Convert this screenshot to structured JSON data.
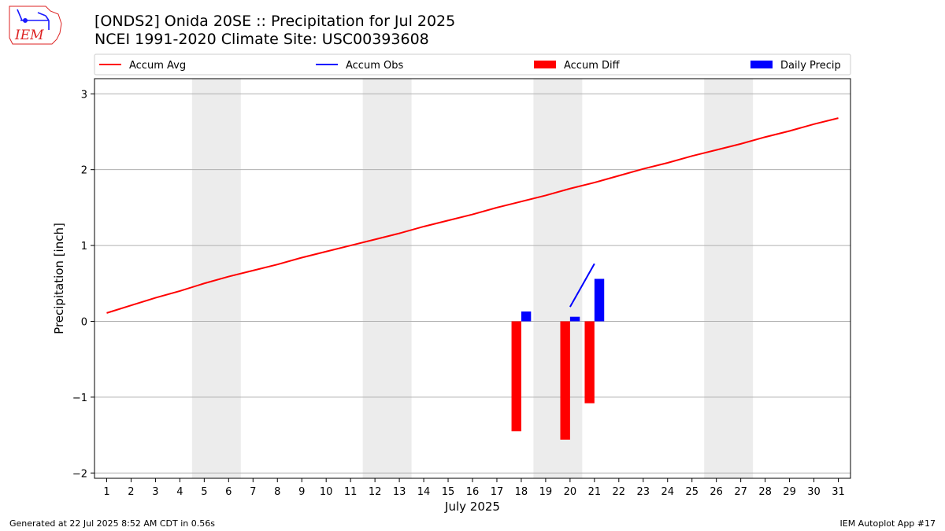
{
  "header": {
    "title_line1": "[ONDS2] Onida 20SE :: Precipitation for Jul 2025",
    "title_line2": "NCEI 1991-2020 Climate Site: USC00393608"
  },
  "logo": {
    "text": "IEM"
  },
  "footer": {
    "generated": "Generated at 22 Jul 2025 8:52 AM CDT in 0.56s",
    "app": "IEM Autoplot App #17"
  },
  "chart_data": {
    "type": "bar",
    "title": "[ONDS2] Onida 20SE :: Precipitation for Jul 2025",
    "subtitle": "NCEI 1991-2020 Climate Site: USC00393608",
    "xlabel": "July 2025",
    "ylabel": "Precipitation [inch]",
    "xlim": [
      0.5,
      31.5
    ],
    "ylim": [
      -2.07,
      3.2
    ],
    "x_ticks": [
      1,
      2,
      3,
      4,
      5,
      6,
      7,
      8,
      9,
      10,
      11,
      12,
      13,
      14,
      15,
      16,
      17,
      18,
      19,
      20,
      21,
      22,
      23,
      24,
      25,
      26,
      27,
      28,
      29,
      30,
      31
    ],
    "y_ticks": [
      -2,
      -1,
      0,
      1,
      2,
      3
    ],
    "y_tick_labels": [
      "−2",
      "−1",
      "0",
      "1",
      "2",
      "3"
    ],
    "grid": "horizontal",
    "legend_position": "top",
    "weekend_shading": [
      [
        4.5,
        6.5
      ],
      [
        11.5,
        13.5
      ],
      [
        18.5,
        20.5
      ],
      [
        25.5,
        27.5
      ]
    ],
    "series": [
      {
        "name": "Accum Avg",
        "kind": "line",
        "color": "#ff0000",
        "x": [
          1,
          2,
          3,
          4,
          5,
          6,
          7,
          8,
          9,
          10,
          11,
          12,
          13,
          14,
          15,
          16,
          17,
          18,
          19,
          20,
          21,
          22,
          23,
          24,
          25,
          26,
          27,
          28,
          29,
          30,
          31
        ],
        "values": [
          0.11,
          0.21,
          0.31,
          0.4,
          0.5,
          0.59,
          0.67,
          0.75,
          0.84,
          0.92,
          1.0,
          1.08,
          1.16,
          1.25,
          1.33,
          1.41,
          1.5,
          1.58,
          1.66,
          1.75,
          1.83,
          1.92,
          2.01,
          2.09,
          2.18,
          2.26,
          2.34,
          2.43,
          2.51,
          2.6,
          2.68
        ]
      },
      {
        "name": "Accum Obs",
        "kind": "line",
        "color": "#0000ff",
        "x": [
          20,
          21
        ],
        "values": [
          0.19,
          0.76
        ]
      },
      {
        "name": "Accum Diff",
        "kind": "bar",
        "color": "#ff0000",
        "offset": -0.2,
        "x": [
          18,
          20,
          21
        ],
        "values": [
          -1.45,
          -1.56,
          -1.08
        ]
      },
      {
        "name": "Daily Precip",
        "kind": "bar",
        "color": "#0000ff",
        "offset": 0.2,
        "x": [
          18,
          20,
          21
        ],
        "values": [
          0.13,
          0.06,
          0.56
        ]
      }
    ]
  }
}
